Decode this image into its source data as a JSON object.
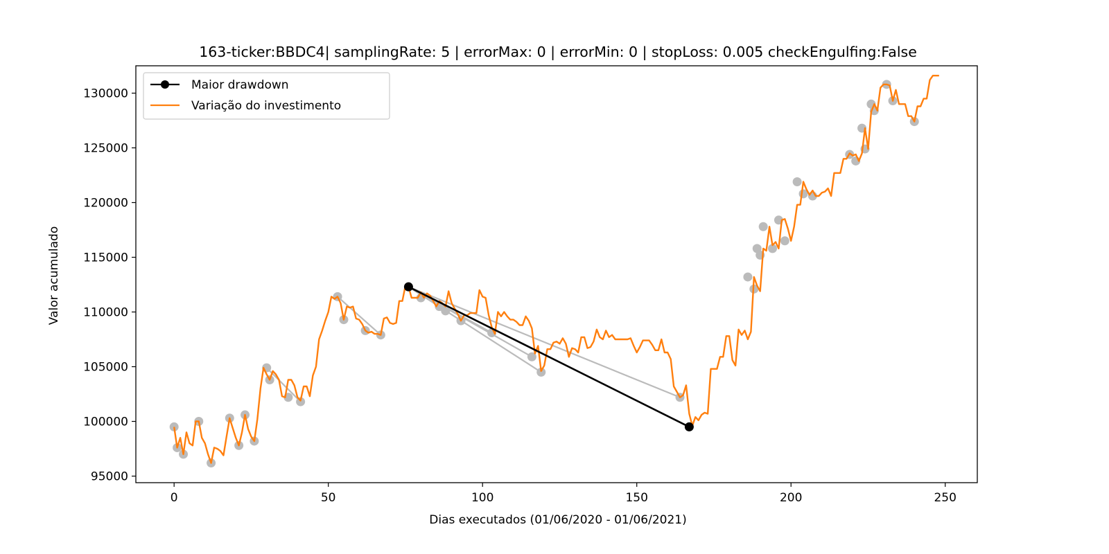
{
  "chart_data": {
    "type": "line",
    "title": "163-ticker:BBDC4| samplingRate: 5 | errorMax: 0 | errorMin: 0 | stopLoss: 0.005 checkEngulfing:False",
    "xlabel": "Dias executados (01/06/2020 - 01/06/2021)",
    "ylabel": "Valor acumulado",
    "xlim": [
      -12.4,
      260.4
    ],
    "ylim": [
      94400,
      132500
    ],
    "xticks": [
      0,
      50,
      100,
      150,
      200,
      250
    ],
    "yticks": [
      95000,
      100000,
      105000,
      110000,
      115000,
      120000,
      125000,
      130000
    ],
    "legend": {
      "position": "upper-left",
      "entries": [
        {
          "label": "Maior drawdown",
          "color": "#000000",
          "marker": "circle"
        },
        {
          "label": "Variação do investimento",
          "color": "#ff7f0e",
          "marker": "none"
        }
      ]
    },
    "series": [
      {
        "name": "Variação do investimento",
        "color": "#ff7f0e",
        "x": [
          0,
          1,
          2,
          3,
          4,
          5,
          6,
          7,
          8,
          9,
          10,
          11,
          12,
          13,
          14,
          15,
          16,
          17,
          18,
          19,
          20,
          21,
          22,
          23,
          24,
          25,
          26,
          27,
          28,
          29,
          30,
          31,
          32,
          33,
          34,
          35,
          36,
          37,
          38,
          39,
          40,
          41,
          42,
          43,
          44,
          45,
          46,
          47,
          48,
          49,
          50,
          51,
          52,
          53,
          54,
          55,
          56,
          57,
          58,
          59,
          60,
          61,
          62,
          63,
          64,
          65,
          66,
          67,
          68,
          69,
          70,
          71,
          72,
          73,
          74,
          75,
          76,
          77,
          78,
          79,
          80,
          81,
          82,
          83,
          84,
          85,
          86,
          87,
          88,
          89,
          90,
          91,
          92,
          93,
          94,
          95,
          96,
          97,
          98,
          99,
          100,
          101,
          102,
          103,
          104,
          105,
          106,
          107,
          108,
          109,
          110,
          111,
          112,
          113,
          114,
          115,
          116,
          117,
          118,
          119,
          120,
          121,
          122,
          123,
          124,
          125,
          126,
          127,
          128,
          129,
          130,
          131,
          132,
          133,
          134,
          135,
          136,
          137,
          138,
          139,
          140,
          141,
          142,
          143,
          144,
          145,
          146,
          147,
          148,
          149,
          150,
          151,
          152,
          153,
          154,
          155,
          156,
          157,
          158,
          159,
          160,
          161,
          162,
          163,
          164,
          165,
          166,
          167,
          168,
          169,
          170,
          171,
          172,
          173,
          174,
          175,
          176,
          177,
          178,
          179,
          180,
          181,
          182,
          183,
          184,
          185,
          186,
          187,
          188,
          189,
          190,
          191,
          192,
          193,
          194,
          195,
          196,
          197,
          198,
          199,
          200,
          201,
          202,
          203,
          204,
          205,
          206,
          207,
          208,
          209,
          210,
          211,
          212,
          213,
          214,
          215,
          216,
          217,
          218,
          219,
          220,
          221,
          222,
          223,
          224,
          225,
          226,
          227,
          228,
          229,
          230,
          231,
          232,
          233,
          234,
          235,
          236,
          237,
          238,
          239,
          240,
          241,
          242,
          243,
          244,
          245,
          246,
          247,
          248
        ],
        "values": [
          99500,
          97600,
          98500,
          97000,
          99000,
          98000,
          97800,
          100000,
          100000,
          98500,
          98000,
          97000,
          96200,
          97600,
          97500,
          97300,
          96900,
          98600,
          100300,
          99400,
          98500,
          97800,
          99000,
          100600,
          99300,
          98600,
          98200,
          100200,
          103000,
          104900,
          104300,
          103800,
          104600,
          104300,
          103800,
          102300,
          102200,
          103800,
          103800,
          103300,
          102200,
          101900,
          103200,
          103200,
          102300,
          104200,
          105000,
          107500,
          108300,
          109200,
          110000,
          111400,
          111200,
          111400,
          110800,
          109300,
          110500,
          110400,
          110500,
          109400,
          109300,
          108900,
          108300,
          108100,
          108200,
          108000,
          108000,
          107900,
          109400,
          109500,
          109000,
          108900,
          109000,
          111000,
          111000,
          112400,
          112300,
          111300,
          111300,
          111300,
          111800,
          111300,
          111700,
          111500,
          111000,
          110500,
          111000,
          110800,
          110500,
          111900,
          110800,
          110300,
          109800,
          109200,
          109700,
          109700,
          109900,
          109900,
          109900,
          112000,
          111400,
          111300,
          109700,
          108600,
          108000,
          110000,
          109600,
          110000,
          109600,
          109300,
          109300,
          109100,
          108800,
          108800,
          109600,
          109200,
          108500,
          106200,
          106900,
          104600,
          105100,
          106600,
          106600,
          107200,
          107300,
          107100,
          107600,
          107100,
          105900,
          106700,
          106600,
          106300,
          107700,
          107700,
          106700,
          106800,
          107300,
          108400,
          107700,
          107500,
          108300,
          107700,
          107900,
          107500,
          107500,
          107500,
          107500,
          107500,
          107600,
          106900,
          106300,
          106800,
          107400,
          107400,
          107400,
          107000,
          106500,
          106500,
          107500,
          106300,
          106300,
          105700,
          103200,
          102700,
          102200,
          102400,
          103300,
          100700,
          99600,
          100400,
          100100,
          100600,
          100800,
          100700,
          104800,
          104800,
          104800,
          105900,
          105900,
          107800,
          107800,
          105600,
          105100,
          108400,
          107900,
          108300,
          107500,
          108200,
          113200,
          112400,
          111900,
          115800,
          115600,
          117800,
          116100,
          116400,
          115800,
          118400,
          118500,
          117600,
          116500,
          117800,
          119800,
          119800,
          121900,
          121200,
          120700,
          121100,
          120600,
          120600,
          120900,
          121000,
          121300,
          120600,
          122700,
          122700,
          122700,
          124000,
          124000,
          124500,
          124300,
          124400,
          123800,
          124500,
          126800,
          124900,
          128300,
          129000,
          128400,
          130500,
          130800,
          130800,
          130700,
          129300,
          130300,
          129000,
          129000,
          129000,
          127900,
          127900,
          127400,
          128800,
          128800,
          129500,
          129500,
          131200,
          131600,
          131600,
          131600
        ]
      },
      {
        "name": "Maior drawdown",
        "color": "#000000",
        "x": [
          76,
          167
        ],
        "values": [
          112300,
          99500
        ]
      }
    ],
    "local_extrema": {
      "color": "#bbbbbb",
      "x": [
        0,
        1,
        3,
        8,
        12,
        18,
        21,
        23,
        26,
        30,
        31,
        37,
        41,
        53,
        55,
        62,
        67,
        76,
        80,
        86,
        88,
        93,
        103,
        116,
        119,
        164,
        167,
        186,
        188,
        189,
        190,
        191,
        194,
        196,
        198,
        202,
        204,
        207,
        219,
        221,
        223,
        224,
        226,
        227,
        231,
        233,
        240
      ],
      "values": [
        99500,
        97600,
        97000,
        100000,
        96200,
        100300,
        97800,
        100600,
        98200,
        104900,
        103800,
        102200,
        101800,
        111400,
        109300,
        108300,
        107900,
        112300,
        111300,
        110500,
        110100,
        109200,
        108100,
        105900,
        104500,
        102200,
        99500,
        113200,
        112100,
        115800,
        115200,
        117800,
        115800,
        118400,
        116500,
        121900,
        120800,
        120600,
        124400,
        123800,
        126800,
        124900,
        129000,
        128400,
        130800,
        129300,
        127400
      ]
    },
    "drawdown_candidates": [
      {
        "from_x": 76,
        "from_value": 112300,
        "to_x": 103,
        "to_value": 108100
      },
      {
        "from_x": 76,
        "from_value": 112300,
        "to_x": 116,
        "to_value": 105900
      },
      {
        "from_x": 76,
        "from_value": 112300,
        "to_x": 119,
        "to_value": 104500
      },
      {
        "from_x": 76,
        "from_value": 112300,
        "to_x": 164,
        "to_value": 102200
      },
      {
        "from_x": 53,
        "from_value": 111400,
        "to_x": 67,
        "to_value": 107900
      },
      {
        "from_x": 30,
        "from_value": 104900,
        "to_x": 41,
        "to_value": 101800
      }
    ]
  }
}
